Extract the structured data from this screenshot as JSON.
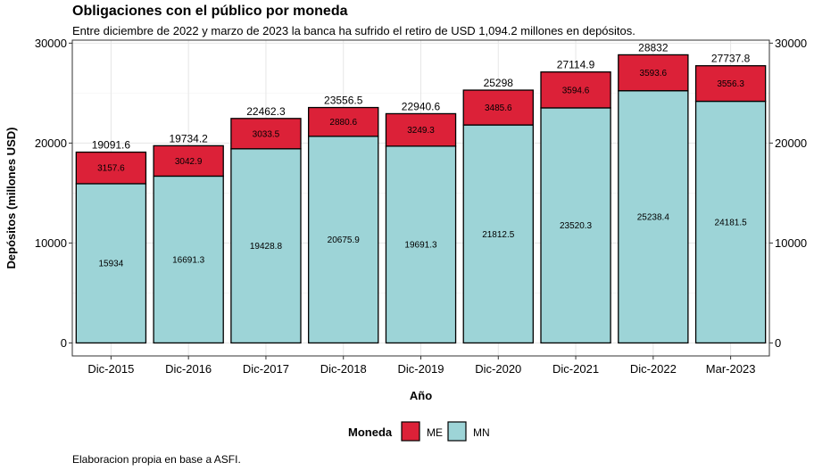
{
  "chart_data": {
    "type": "bar",
    "stacked": true,
    "title": "Obligaciones con el público por moneda",
    "subtitle": "Entre diciembre de 2022 y marzo de 2023 la banca ha sufrido el retiro de USD 1,094.2 millones en depósitos.",
    "caption": "Elaboracion propia en base a ASFI.",
    "xlabel": "Año",
    "ylabel": "Depósitos (millones USD)",
    "categories": [
      "Dic-2015",
      "Dic-2016",
      "Dic-2017",
      "Dic-2018",
      "Dic-2019",
      "Dic-2020",
      "Dic-2021",
      "Dic-2022",
      "Mar-2023"
    ],
    "series": [
      {
        "name": "MN",
        "color": "#9dd4d7",
        "values": [
          15934,
          16691.3,
          19428.8,
          20675.9,
          19691.3,
          21812.5,
          23520.3,
          25238.4,
          24181.5
        ]
      },
      {
        "name": "ME",
        "color": "#dc2138",
        "values": [
          3157.6,
          3042.9,
          3033.5,
          2880.6,
          3249.3,
          3485.6,
          3594.6,
          3593.6,
          3556.3
        ]
      }
    ],
    "series_labels": {
      "MN": [
        "15934",
        "16691.3",
        "19428.8",
        "20675.9",
        "19691.3",
        "21812.5",
        "23520.3",
        "25238.4",
        "24181.5"
      ],
      "ME": [
        "3157.6",
        "3042.9",
        "3033.5",
        "2880.6",
        "3249.3",
        "3485.6",
        "3594.6",
        "3593.6",
        "3556.3"
      ]
    },
    "totals": [
      "19091.6",
      "19734.2",
      "22462.3",
      "23556.5",
      "22940.6",
      "25298",
      "27114.9",
      "28832",
      "27737.8"
    ],
    "yticks": [
      0,
      10000,
      20000,
      30000
    ],
    "ylim": [
      -1300,
      30300
    ],
    "grid": true,
    "secondary_y_axis": true,
    "legend": {
      "title": "Moneda",
      "position": "bottom",
      "entries": [
        "ME",
        "MN"
      ]
    }
  }
}
